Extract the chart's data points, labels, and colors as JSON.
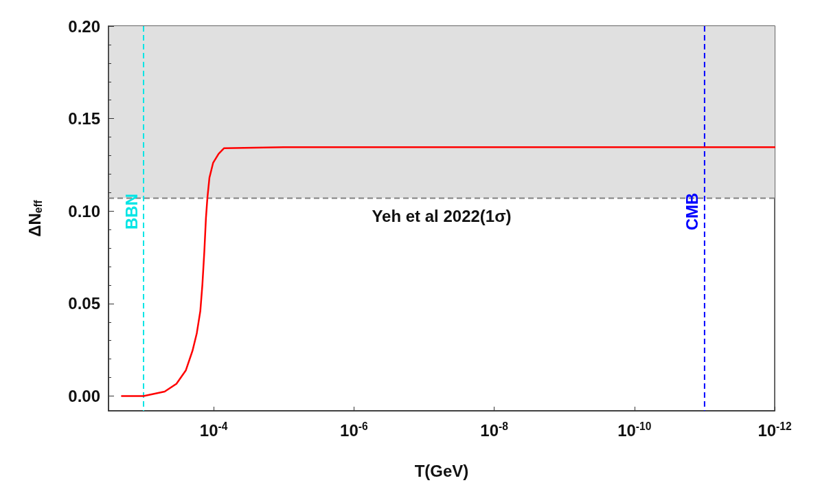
{
  "chart_data": {
    "type": "line",
    "xlabel": "T(GeV)",
    "ylabel": "ΔN$_{eff}$",
    "log": "x",
    "xlim": [
      0.00316,
      1e-12
    ],
    "xticks": [
      {
        "value": 0.0001,
        "label": "10$^{-4}$"
      },
      {
        "value": 1e-06,
        "label": "10$^{-6}$"
      },
      {
        "value": 1e-08,
        "label": "10$^{-8}$"
      },
      {
        "value": 1e-10,
        "label": "10$^{-10}$"
      },
      {
        "value": 1e-12,
        "label": "10$^{-12}$"
      }
    ],
    "ylim": [
      -0.008,
      0.2
    ],
    "yticks": [
      {
        "value": 0,
        "label": "0.00"
      },
      {
        "value": 0.05,
        "label": "0.05"
      },
      {
        "value": 0.1,
        "label": "0.10"
      },
      {
        "value": 0.15,
        "label": "0.15"
      },
      {
        "value": 0.2,
        "label": "0.20"
      }
    ],
    "grid": false,
    "marker": "none",
    "line_style": "solid",
    "series": [
      {
        "color": "#ff0000",
        "x": [
          0.00204,
          0.001,
          0.0005,
          0.00034,
          0.00025,
          0.0002,
          0.000174,
          0.000155,
          0.000145,
          0.000136,
          0.000129,
          0.000123,
          0.000115,
          0.000102,
          8.5e-05,
          7.1e-05,
          1e-05,
          1e-12
        ],
        "values": [
          0,
          0,
          0.0024,
          0.0066,
          0.0138,
          0.0246,
          0.034,
          0.046,
          0.06,
          0.078,
          0.096,
          0.107,
          0.118,
          0.126,
          0.131,
          0.134,
          0.1345,
          0.1345
        ]
      }
    ],
    "ref_lines": [
      {
        "axis": "y",
        "value": 0.107,
        "label": "Yeh et al 2022(1σ)",
        "color": "#808080",
        "line_style": "dashed"
      },
      {
        "axis": "x",
        "value": 0.001,
        "label": "BBN",
        "color": "#00e5e5",
        "line_style": "dashed"
      },
      {
        "axis": "x",
        "value": 1e-11,
        "label": "CMB",
        "color": "#0000ff",
        "line_style": "dashed"
      }
    ],
    "bands": [
      {
        "axis": "y",
        "from": 0.107,
        "to": 0.2,
        "color": "#e0e0e0"
      }
    ]
  }
}
